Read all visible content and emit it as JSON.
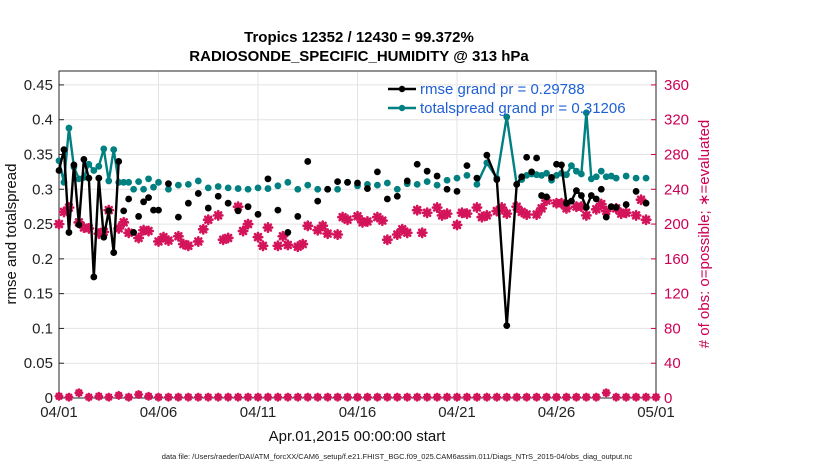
{
  "chart_data": {
    "type": "line",
    "title": "Tropics 12352 / 12430 = 99.372%",
    "subtitle": "RADIOSONDE_SPECIFIC_HUMIDITY @ 313 hPa",
    "xlabel": "Apr.01,2015 00:00:00 start",
    "ylabel": "rmse and totalspread",
    "ylabel_right": "# of obs: o=possible; ∗=evaluated",
    "footer": "data file: /Users/raeder/DAI/ATM_forcXX/CAM6_setup/f.e21.FHIST_BGC.f09_025.CAM6assim.011/Diags_NTrS_2015-04/obs_diag_output.nc",
    "xlim": [
      0,
      30
    ],
    "ylim": [
      0,
      0.47
    ],
    "ylim_right": [
      0,
      376
    ],
    "x_ticks": [
      0,
      5,
      10,
      15,
      20,
      25,
      30
    ],
    "x_tick_labels": [
      "04/01",
      "04/06",
      "04/11",
      "04/16",
      "04/21",
      "04/26",
      "05/01"
    ],
    "y_ticks": [
      0,
      0.05,
      0.1,
      0.15,
      0.2,
      0.25,
      0.3,
      0.35,
      0.4,
      0.45
    ],
    "y_tick_labels": [
      "0",
      "0.05",
      "0.1",
      "0.15",
      "0.2",
      "0.25",
      "0.3",
      "0.35",
      "0.4",
      "0.45"
    ],
    "y_right_ticks": [
      0,
      40,
      80,
      120,
      160,
      200,
      240,
      280,
      320,
      360
    ],
    "y_right_tick_labels": [
      "0",
      "40",
      "80",
      "120",
      "160",
      "200",
      "240",
      "280",
      "320",
      "360"
    ],
    "grid": true,
    "legend_location": "top-right",
    "series": [
      {
        "name": "rmse grand pr = 0.29788",
        "color": "#000000",
        "x": [
          0.0,
          0.25,
          0.5,
          0.75,
          1.0,
          1.25,
          1.5,
          1.75,
          2.0,
          2.25,
          2.5,
          2.75,
          3.0,
          3.25,
          3.5,
          3.75,
          4.0,
          4.25,
          4.5,
          4.75,
          5.0,
          5.5,
          6.0,
          6.5,
          7.0,
          7.5,
          8.0,
          8.5,
          9.0,
          9.5,
          10.0,
          10.5,
          11.0,
          11.5,
          12.0,
          12.5,
          13.0,
          13.5,
          14.0,
          14.5,
          15.0,
          15.5,
          16.0,
          16.5,
          17.0,
          17.5,
          18.0,
          18.5,
          19.0,
          19.5,
          20.0,
          20.5,
          21.0,
          21.5,
          22.0,
          22.5,
          23.0,
          23.25,
          23.5,
          23.75,
          24.0,
          24.25,
          24.5,
          24.75,
          25.0,
          25.25,
          25.5,
          25.75,
          26.0,
          26.25,
          26.5,
          26.75,
          27.0,
          27.25,
          27.5,
          27.75,
          28.0,
          28.5,
          29.0,
          29.5
        ],
        "values": [
          0.327,
          0.357,
          0.238,
          0.335,
          0.249,
          0.343,
          0.316,
          0.174,
          0.316,
          0.231,
          0.269,
          0.209,
          0.34,
          0.269,
          0.286,
          0.238,
          0.261,
          0.282,
          0.288,
          0.27,
          0.27,
          0.308,
          0.26,
          0.28,
          0.294,
          0.273,
          0.29,
          0.28,
          0.269,
          0.275,
          0.264,
          0.315,
          0.27,
          0.238,
          0.261,
          0.34,
          0.283,
          0.3,
          0.311,
          0.31,
          0.309,
          0.301,
          0.325,
          0.286,
          0.29,
          0.312,
          0.336,
          0.326,
          0.319,
          0.3,
          0.297,
          0.334,
          0.316,
          0.349,
          0.314,
          0.104,
          0.307,
          0.318,
          0.346,
          0.325,
          0.345,
          0.291,
          0.289,
          0.317,
          0.336,
          0.335,
          0.28,
          0.283,
          0.298,
          0.291,
          0.274,
          0.291,
          0.286,
          0.3,
          0.26,
          0.275,
          0.274,
          0.278,
          0.297,
          0.28
        ],
        "markers_only_after_index": 0
      },
      {
        "name": "totalspread grand pr = 0.31206",
        "color": "#008080",
        "x": [
          0.0,
          0.25,
          0.5,
          0.75,
          1.0,
          1.25,
          1.5,
          1.75,
          2.0,
          2.25,
          2.5,
          2.75,
          3.0,
          3.25,
          3.5,
          3.75,
          4.0,
          4.25,
          4.5,
          4.75,
          5.0,
          5.5,
          6.0,
          6.5,
          7.0,
          7.5,
          8.0,
          8.5,
          9.0,
          9.5,
          10.0,
          10.5,
          11.0,
          11.5,
          12.0,
          12.5,
          13.0,
          13.5,
          14.0,
          14.5,
          15.0,
          15.5,
          16.0,
          16.5,
          17.0,
          17.5,
          18.0,
          18.5,
          19.0,
          19.5,
          20.0,
          20.5,
          21.0,
          21.5,
          22.0,
          22.5,
          23.0,
          23.25,
          23.5,
          23.75,
          24.0,
          24.25,
          24.5,
          24.75,
          25.0,
          25.25,
          25.5,
          25.75,
          26.0,
          26.25,
          26.5,
          26.75,
          27.0,
          27.25,
          27.5,
          27.75,
          28.0,
          28.5,
          29.0,
          29.5
        ],
        "values": [
          0.341,
          0.31,
          0.388,
          0.332,
          0.315,
          0.317,
          0.336,
          0.327,
          0.333,
          0.358,
          0.312,
          0.357,
          0.31,
          0.31,
          0.31,
          0.3,
          0.311,
          0.3,
          0.315,
          0.303,
          0.31,
          0.3,
          0.306,
          0.307,
          0.312,
          0.302,
          0.304,
          0.302,
          0.301,
          0.3,
          0.302,
          0.301,
          0.305,
          0.31,
          0.3,
          0.306,
          0.3,
          0.3,
          0.3,
          0.31,
          0.305,
          0.307,
          0.306,
          0.309,
          0.3,
          0.308,
          0.307,
          0.311,
          0.306,
          0.313,
          0.316,
          0.32,
          0.307,
          0.338,
          0.316,
          0.404,
          0.307,
          0.314,
          0.32,
          0.322,
          0.321,
          0.32,
          0.323,
          0.313,
          0.32,
          0.323,
          0.321,
          0.334,
          0.326,
          0.322,
          0.41,
          0.315,
          0.318,
          0.326,
          0.318,
          0.319,
          0.316,
          0.319,
          0.316,
          0.316
        ]
      },
      {
        "name": "# of obs evaluated",
        "color": "#d4145a",
        "axis": "right",
        "x": [
          0.0,
          0.5,
          1.0,
          1.5,
          2.0,
          2.5,
          3.0,
          3.5,
          4.0,
          4.5,
          5.0,
          5.5,
          6.0,
          6.5,
          7.0,
          7.5,
          8.0,
          8.5,
          9.0,
          9.5,
          10.0,
          10.5,
          11.0,
          11.5,
          12.0,
          12.5,
          13.0,
          13.5,
          14.0,
          14.5,
          15.0,
          15.5,
          16.0,
          16.5,
          17.0,
          17.5,
          18.0,
          18.5,
          19.0,
          19.5,
          20.0,
          20.5,
          21.0,
          21.5,
          22.0,
          22.5,
          23.0,
          23.5,
          24.0,
          24.5,
          25.0,
          25.5,
          26.0,
          26.5,
          27.0,
          27.5,
          28.0,
          28.5,
          29.0,
          29.5
        ],
        "values": [
          200,
          219,
          202,
          195,
          189,
          216,
          195,
          190,
          184,
          192,
          180,
          181,
          186,
          175,
          180,
          205,
          210,
          184,
          220,
          200,
          185,
          196,
          175,
          176,
          174,
          198,
          193,
          189,
          188,
          205,
          209,
          203,
          208,
          182,
          188,
          190,
          216,
          213,
          219,
          212,
          199,
          212,
          219,
          210,
          215,
          212,
          220,
          211,
          211,
          227,
          224,
          218,
          220,
          210,
          217,
          215,
          218,
          213,
          210,
          205
        ],
        "extra_x": [
          0.25,
          1.25,
          2.25,
          3.25,
          4.25,
          5.25,
          6.25,
          7.25,
          8.25,
          9.25,
          10.25,
          11.25,
          12.25,
          13.25,
          14.25,
          15.25,
          16.25,
          17.25,
          18.25,
          19.25,
          20.25,
          21.25,
          22.25,
          23.25,
          24.25,
          25.25,
          26.25,
          27.25,
          28.25,
          29.25
        ],
        "extra_values": [
          214,
          196,
          191,
          202,
          193,
          185,
          177,
          194,
          182,
          192,
          175,
          186,
          177,
          198,
          208,
          202,
          204,
          194,
          190,
          210,
          213,
          208,
          219,
          214,
          218,
          224,
          220,
          223,
          212,
          228
        ]
      },
      {
        "name": "# of obs possible",
        "color": "#d4145a",
        "axis": "right",
        "marker": "circle",
        "x": [
          0,
          0.5,
          1,
          1.5,
          2,
          2.5,
          3,
          3.5,
          4,
          4.5,
          5,
          5.5,
          6,
          6.5,
          7,
          7.5,
          8,
          8.5,
          9,
          9.5,
          10,
          10.5,
          11,
          11.5,
          12,
          12.5,
          13,
          13.5,
          14,
          14.5,
          15,
          15.5,
          16,
          16.5,
          17,
          17.5,
          18,
          18.5,
          19,
          19.5,
          20,
          20.5,
          21,
          21.5,
          22,
          22.5,
          23,
          23.5,
          24,
          24.5,
          25,
          25.5,
          26,
          26.5,
          27,
          27.5,
          28,
          28.5,
          29,
          29.5,
          30
        ],
        "values": [
          2,
          1,
          6,
          1,
          2,
          1,
          3,
          1,
          4,
          2,
          1,
          1,
          1,
          1,
          1,
          1,
          1,
          1,
          1,
          1,
          1,
          1,
          1,
          1,
          1,
          1,
          1,
          1,
          1,
          1,
          1,
          1,
          1,
          1,
          1,
          1,
          1,
          1,
          1,
          1,
          1,
          1,
          1,
          1,
          1,
          1,
          1,
          1,
          1,
          1,
          1,
          1,
          1,
          1,
          1,
          6,
          1,
          1,
          1,
          1,
          1
        ]
      }
    ]
  }
}
